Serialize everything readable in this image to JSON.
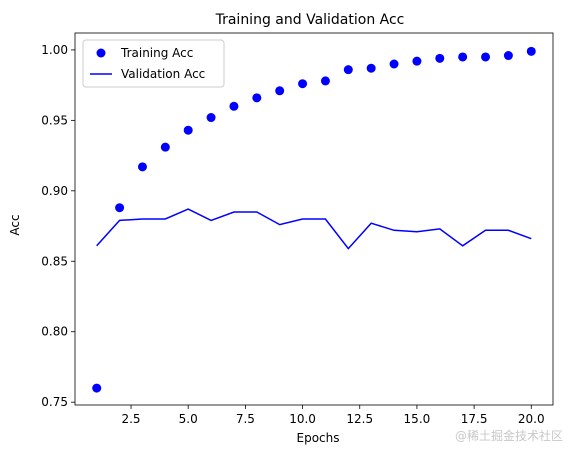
{
  "chart_data": {
    "type": "line",
    "title": "Training and Validation Acc",
    "xlabel": "Epochs",
    "ylabel": "Acc",
    "xlim": [
      0.05,
      20.95
    ],
    "ylim": [
      0.748,
      1.012
    ],
    "xticks": [
      2.5,
      5.0,
      7.5,
      10.0,
      12.5,
      15.0,
      17.5,
      20.0
    ],
    "xtick_labels": [
      "2.5",
      "5.0",
      "7.5",
      "10.0",
      "12.5",
      "15.0",
      "17.5",
      "20.0"
    ],
    "yticks": [
      0.75,
      0.8,
      0.85,
      0.9,
      0.95,
      1.0
    ],
    "ytick_labels": [
      "0.75",
      "0.80",
      "0.85",
      "0.90",
      "0.95",
      "1.00"
    ],
    "grid": false,
    "legend_position": "top-left",
    "x": [
      1,
      2,
      3,
      4,
      5,
      6,
      7,
      8,
      9,
      10,
      11,
      12,
      13,
      14,
      15,
      16,
      17,
      18,
      19,
      20
    ],
    "series": [
      {
        "name": "Training Acc",
        "style": "markers",
        "color": "#0000ff",
        "values": [
          0.76,
          0.888,
          0.917,
          0.931,
          0.943,
          0.952,
          0.96,
          0.966,
          0.971,
          0.976,
          0.978,
          0.986,
          0.987,
          0.99,
          0.992,
          0.994,
          0.995,
          0.995,
          0.996,
          0.999
        ]
      },
      {
        "name": "Validation Acc",
        "style": "line",
        "color": "#0000ff",
        "values": [
          0.861,
          0.879,
          0.88,
          0.88,
          0.887,
          0.879,
          0.885,
          0.885,
          0.876,
          0.88,
          0.88,
          0.859,
          0.877,
          0.872,
          0.871,
          0.873,
          0.861,
          0.872,
          0.872,
          0.866
        ]
      }
    ]
  },
  "watermark": "@稀土掘金技术社区"
}
